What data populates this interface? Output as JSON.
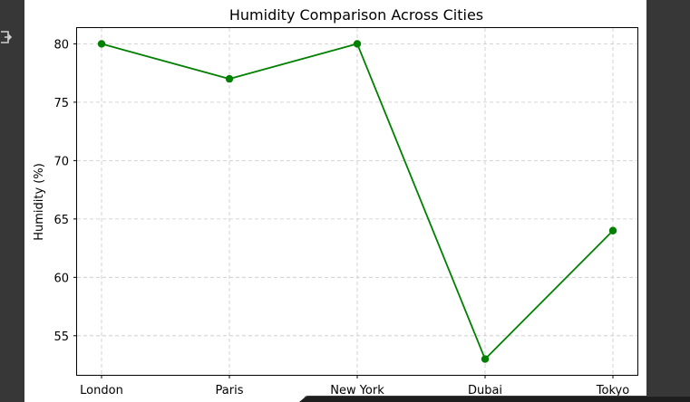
{
  "chart_data": {
    "type": "line",
    "title": "Humidity Comparison Across Cities",
    "xlabel": "",
    "ylabel": "Humidity (%)",
    "categories": [
      "London",
      "Paris",
      "New York",
      "Dubai",
      "Tokyo"
    ],
    "series": [
      {
        "values": [
          80,
          77,
          80,
          53,
          64
        ],
        "color": "#008000",
        "marker": "circle"
      }
    ],
    "yticks": [
      55,
      60,
      65,
      70,
      75,
      80
    ],
    "ylim": [
      51.65,
      81.35
    ],
    "grid": true,
    "grid_style": "dashed",
    "legend": "none"
  },
  "colors": {
    "background": "#ffffff",
    "surround": "#373737",
    "grid": "#c8c8c8",
    "axes": "#000000"
  },
  "icons": {
    "side_toolbar": "sidebar-toggle-icon"
  }
}
